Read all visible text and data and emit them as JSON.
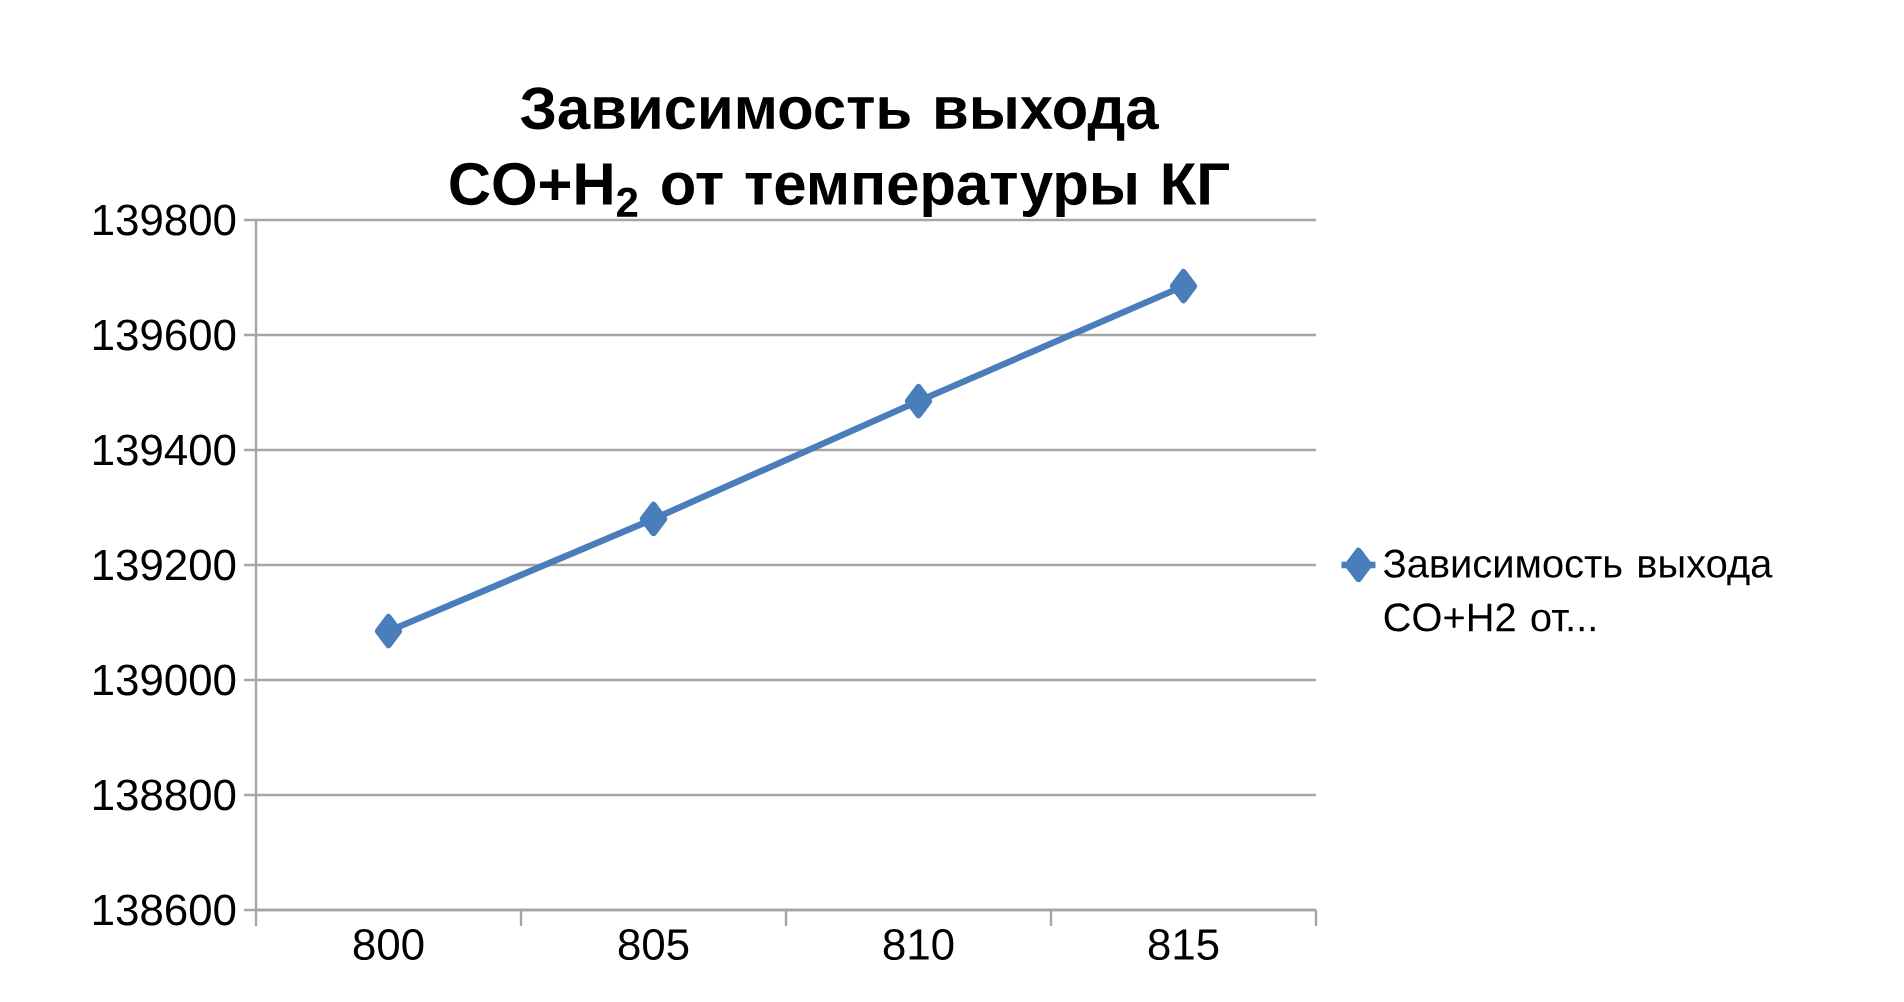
{
  "chart_data": {
    "type": "line",
    "title": "Зависимость выхода CO+H$_{2}$ от температуры КГ",
    "categories": [
      "800",
      "805",
      "810",
      "815"
    ],
    "series": [
      {
        "name": "Зависимость выхода CO+H2 от...",
        "color": "#4a7ebb",
        "values": [
          139085,
          139280,
          139485,
          139685
        ]
      }
    ],
    "ylim": [
      138600,
      139800
    ],
    "yticks": [
      138600,
      138800,
      139000,
      139200,
      139400,
      139600,
      139800
    ],
    "grid": "y",
    "legend": "right",
    "marker": "diamond",
    "line_style": "solid"
  }
}
